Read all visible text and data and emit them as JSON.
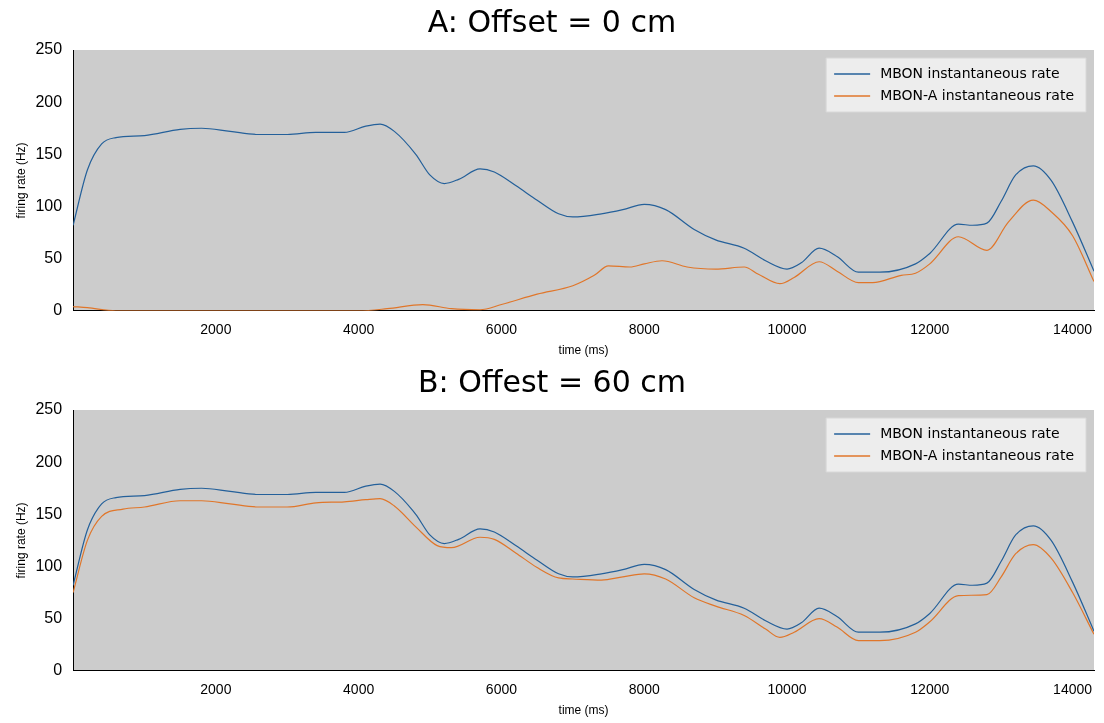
{
  "chart_data": [
    {
      "type": "line",
      "title": "A: Offset = 0 cm",
      "xlabel": "time (ms)",
      "ylabel": "firing rate (Hz)",
      "xlim": [
        0,
        14300
      ],
      "xticks": [
        2000,
        4000,
        6000,
        8000,
        10000,
        12000,
        14000
      ],
      "ylim": [
        0,
        250
      ],
      "yticks": [
        0,
        50,
        100,
        150,
        200,
        250
      ],
      "grid": false,
      "legend": "top right",
      "marker": "none",
      "line_style": "solid",
      "series": [
        {
          "name": "MBON instantaneous rate",
          "color": "#24609a",
          "x": [
            0,
            200,
            400,
            600,
            1000,
            1500,
            1800,
            2200,
            2600,
            3000,
            3400,
            3800,
            4100,
            4300,
            4500,
            4800,
            5000,
            5200,
            5400,
            5700,
            5900,
            6200,
            6500,
            6800,
            7000,
            7400,
            7700,
            8000,
            8300,
            8700,
            9000,
            9400,
            9700,
            10000,
            10200,
            10450,
            10700,
            11000,
            11300,
            11800,
            12000,
            12400,
            12600,
            12800,
            13000,
            13200,
            13450,
            13700,
            14000,
            14300
          ],
          "values": [
            82,
            135,
            160,
            166,
            168,
            174,
            175,
            172,
            169,
            169,
            171,
            171,
            177,
            179,
            172,
            150,
            130,
            122,
            126,
            136,
            133,
            120,
            106,
            93,
            90,
            93,
            97,
            102,
            97,
            78,
            68,
            60,
            48,
            40,
            46,
            60,
            52,
            37,
            37,
            45,
            55,
            83,
            82,
            84,
            105,
            130,
            139,
            125,
            85,
            38
          ]
        },
        {
          "name": "MBON-A instantaneous rate",
          "color": "#e0762a",
          "x": [
            0,
            200,
            600,
            4000,
            4400,
            4900,
            5300,
            5700,
            6000,
            6500,
            7000,
            7300,
            7500,
            7800,
            8000,
            8250,
            8600,
            9000,
            9400,
            9600,
            9900,
            10100,
            10450,
            10700,
            11000,
            11200,
            11600,
            11800,
            12000,
            12400,
            12800,
            13100,
            13450,
            13700,
            14000,
            14300
          ],
          "values": [
            4,
            3,
            0,
            0,
            2,
            6,
            2,
            1,
            6,
            16,
            24,
            34,
            43,
            42,
            45,
            48,
            42,
            40,
            42,
            35,
            26,
            32,
            47,
            38,
            27,
            27,
            34,
            36,
            45,
            71,
            58,
            85,
            106,
            95,
            72,
            28
          ]
        }
      ]
    },
    {
      "type": "line",
      "title": "B: Offest = 60 cm",
      "xlabel": "time (ms)",
      "ylabel": "firing rate (Hz)",
      "xlim": [
        0,
        14300
      ],
      "xticks": [
        2000,
        4000,
        6000,
        8000,
        10000,
        12000,
        14000
      ],
      "ylim": [
        0,
        250
      ],
      "yticks": [
        0,
        50,
        100,
        150,
        200,
        250
      ],
      "grid": false,
      "legend": "top right",
      "marker": "none",
      "line_style": "solid",
      "series": [
        {
          "name": "MBON instantaneous rate",
          "color": "#24609a",
          "x": [
            0,
            200,
            400,
            600,
            1000,
            1500,
            1800,
            2200,
            2600,
            3000,
            3400,
            3800,
            4100,
            4300,
            4500,
            4800,
            5000,
            5200,
            5400,
            5700,
            5900,
            6200,
            6500,
            6800,
            7000,
            7400,
            7700,
            8000,
            8300,
            8700,
            9000,
            9400,
            9700,
            10000,
            10200,
            10450,
            10700,
            11000,
            11300,
            11800,
            12000,
            12400,
            12600,
            12800,
            13000,
            13200,
            13450,
            13700,
            14000,
            14300
          ],
          "values": [
            82,
            135,
            160,
            166,
            168,
            174,
            175,
            172,
            169,
            169,
            171,
            171,
            177,
            179,
            172,
            150,
            130,
            122,
            126,
            136,
            133,
            120,
            106,
            93,
            90,
            93,
            97,
            102,
            97,
            78,
            68,
            60,
            48,
            40,
            46,
            60,
            52,
            37,
            37,
            45,
            55,
            83,
            82,
            84,
            105,
            130,
            139,
            125,
            85,
            38
          ]
        },
        {
          "name": "MBON-A instantaneous rate",
          "color": "#e0762a",
          "x": [
            0,
            200,
            400,
            700,
            1000,
            1500,
            1800,
            2200,
            2600,
            3000,
            3400,
            3800,
            4100,
            4300,
            4500,
            4800,
            5100,
            5300,
            5700,
            5900,
            6200,
            6500,
            6800,
            7000,
            7400,
            7700,
            8000,
            8300,
            8700,
            9000,
            9400,
            9700,
            9900,
            10100,
            10450,
            10700,
            11000,
            11300,
            11800,
            12000,
            12400,
            12800,
            13000,
            13200,
            13450,
            13700,
            14000,
            14300
          ],
          "values": [
            75,
            125,
            148,
            155,
            157,
            163,
            163,
            160,
            157,
            157,
            161,
            162,
            164,
            165,
            158,
            138,
            120,
            118,
            128,
            126,
            113,
            99,
            89,
            88,
            87,
            90,
            93,
            88,
            70,
            62,
            53,
            40,
            32,
            37,
            50,
            42,
            29,
            29,
            37,
            47,
            72,
            73,
            90,
            112,
            121,
            108,
            75,
            35
          ]
        }
      ]
    }
  ]
}
